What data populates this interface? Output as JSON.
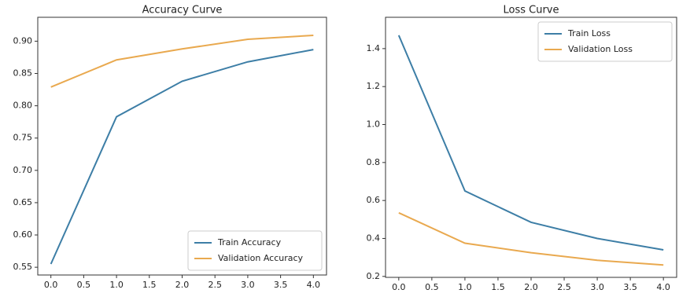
{
  "chart_data": [
    {
      "type": "line",
      "title": "Accuracy Curve",
      "x": [
        0,
        1,
        2,
        3,
        4
      ],
      "series": [
        {
          "name": "Train Accuracy",
          "color": "#3d7ea6",
          "values": [
            0.555,
            0.783,
            0.838,
            0.868,
            0.887
          ]
        },
        {
          "name": "Validation Accuracy",
          "color": "#e9a94f",
          "values": [
            0.829,
            0.871,
            0.888,
            0.903,
            0.909
          ]
        }
      ],
      "xlim": [
        -0.2,
        4.2
      ],
      "xticks": [
        {
          "value": 0,
          "label": "0.0"
        },
        0.5,
        {
          "value": 1,
          "label": "1.0"
        },
        1.5,
        {
          "value": 2,
          "label": "2.0"
        },
        2.5,
        {
          "value": 3,
          "label": "3.0"
        },
        3.5,
        {
          "value": 4,
          "label": "4.0"
        }
      ],
      "ylim": [
        0.538,
        0.937
      ],
      "yticks": [
        0.55,
        {
          "value": 0.6,
          "label": "0.60"
        },
        0.65,
        {
          "value": 0.7,
          "label": "0.70"
        },
        0.75,
        {
          "value": 0.8,
          "label": "0.80"
        },
        0.85,
        {
          "value": 0.9,
          "label": "0.90"
        }
      ],
      "legend": "lower right"
    },
    {
      "type": "line",
      "title": "Loss Curve",
      "x": [
        0,
        1,
        2,
        3,
        4
      ],
      "series": [
        {
          "name": "Train Loss",
          "color": "#3d7ea6",
          "values": [
            1.47,
            0.65,
            0.485,
            0.4,
            0.34
          ]
        },
        {
          "name": "Validation Loss",
          "color": "#e9a94f",
          "values": [
            0.535,
            0.375,
            0.325,
            0.285,
            0.26
          ]
        }
      ],
      "xlim": [
        -0.2,
        4.2
      ],
      "xticks": [
        {
          "value": 0,
          "label": "0.0"
        },
        0.5,
        {
          "value": 1,
          "label": "1.0"
        },
        1.5,
        {
          "value": 2,
          "label": "2.0"
        },
        2.5,
        {
          "value": 3,
          "label": "3.0"
        },
        3.5,
        {
          "value": 4,
          "label": "4.0"
        }
      ],
      "ylim": [
        0.195,
        1.565
      ],
      "yticks": [
        0.2,
        0.4,
        0.6,
        0.8,
        {
          "value": 1,
          "label": "1.0"
        },
        1.2,
        1.4
      ],
      "legend": "upper right"
    }
  ]
}
